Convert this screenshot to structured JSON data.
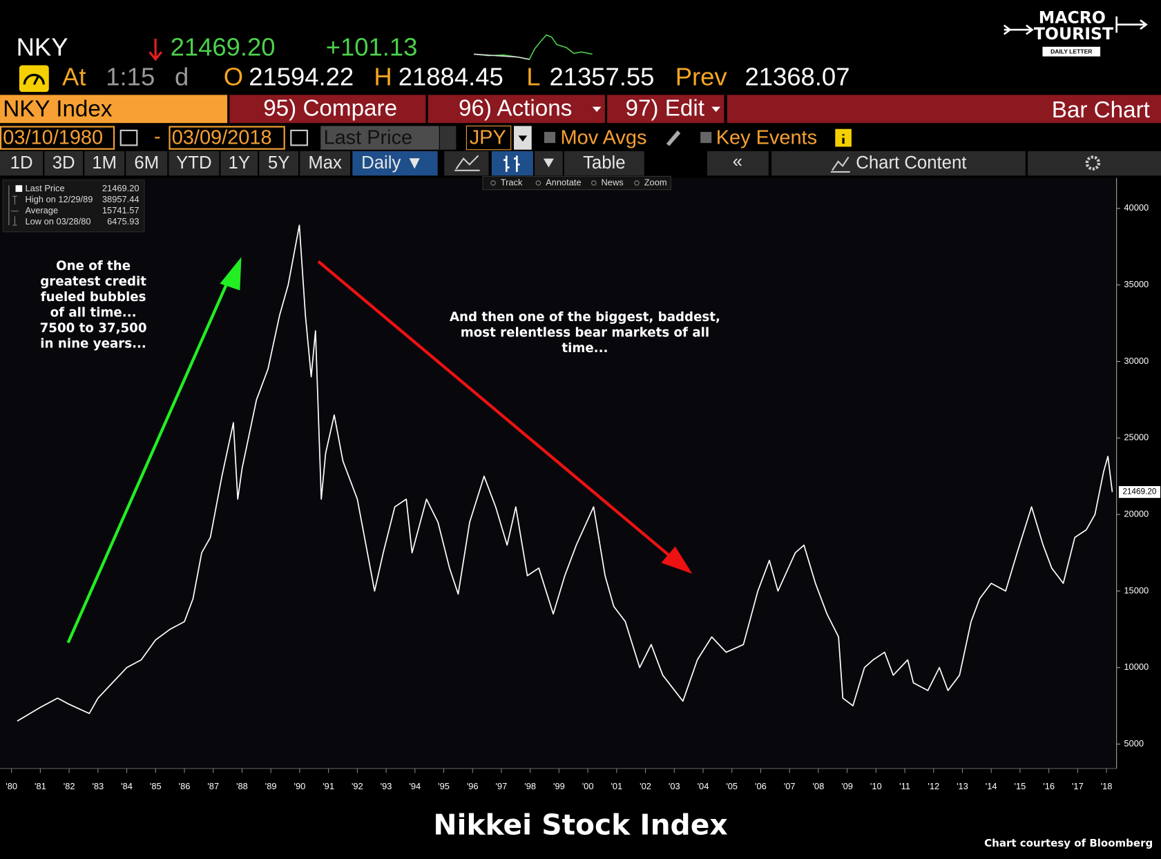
{
  "header": {
    "ticker": "NKY",
    "price": "21469.20",
    "change": "+101.13",
    "at": "At",
    "time": "1:15",
    "period": "d",
    "open_label": "O",
    "open": "21594.22",
    "high_label": "H",
    "high": "21884.45",
    "low_label": "L",
    "low": "21357.55",
    "prev_label": "Prev",
    "prev": "21368.07"
  },
  "logo": {
    "line1": "MACRO",
    "line2": "TOURIST",
    "line3": "DAILY LETTER"
  },
  "toolbar": {
    "security": "NKY Index",
    "compare": "95) Compare",
    "actions": "96) Actions",
    "edit": "97) Edit",
    "chart_type": "Bar Chart"
  },
  "settings": {
    "start": "03/10/1980",
    "separator": "-",
    "end": "03/09/2018",
    "field": "Last Price",
    "currency": "JPY",
    "mov_avgs": "Mov Avgs",
    "key_events": "Key Events"
  },
  "periods": [
    "1D",
    "3D",
    "1M",
    "6M",
    "YTD",
    "1Y",
    "5Y",
    "Max"
  ],
  "frequency": "Daily ▼",
  "table": "Table",
  "collapse": "«",
  "chart_content": "Chart Content",
  "tools": [
    "Track",
    "Annotate",
    "News",
    "Zoom"
  ],
  "chart_data": {
    "type": "line",
    "x": [
      1980.2,
      1981.0,
      1981.6,
      1982.0,
      1982.7,
      1983.0,
      1983.5,
      1984.0,
      1984.5,
      1985.0,
      1985.5,
      1986.0,
      1986.3,
      1986.6,
      1986.9,
      1987.3,
      1987.7,
      1987.85,
      1988.0,
      1988.5,
      1988.9,
      1989.3,
      1989.6,
      1989.99,
      1990.2,
      1990.4,
      1990.55,
      1990.75,
      1990.9,
      1991.2,
      1991.5,
      1992.0,
      1992.6,
      1992.9,
      1993.3,
      1993.7,
      1993.9,
      1994.4,
      1994.8,
      1995.2,
      1995.5,
      1995.9,
      1996.4,
      1996.8,
      1997.2,
      1997.5,
      1997.9,
      1998.3,
      1998.8,
      1999.2,
      1999.6,
      2000.2,
      2000.6,
      2000.9,
      2001.3,
      2001.8,
      2002.2,
      2002.6,
      2003.3,
      2003.8,
      2004.3,
      2004.8,
      2005.4,
      2005.9,
      2006.3,
      2006.6,
      2007.2,
      2007.5,
      2007.9,
      2008.3,
      2008.7,
      2008.85,
      2009.2,
      2009.6,
      2009.9,
      2010.3,
      2010.6,
      2011.1,
      2011.3,
      2011.8,
      2012.2,
      2012.5,
      2012.9,
      2013.3,
      2013.6,
      2014.0,
      2014.5,
      2014.9,
      2015.4,
      2015.8,
      2016.1,
      2016.5,
      2016.9,
      2017.3,
      2017.6,
      2017.9,
      2018.05,
      2018.2
    ],
    "series": [
      {
        "name": "Last Price",
        "color": "#ffffff",
        "values": [
          6500,
          7400,
          8000,
          7600,
          7000,
          8000,
          9000,
          10000,
          10500,
          11800,
          12500,
          13000,
          14500,
          17500,
          18500,
          22500,
          26000,
          21000,
          23000,
          27500,
          29500,
          33000,
          35000,
          38900,
          33000,
          29000,
          32000,
          21000,
          24000,
          26500,
          23500,
          21000,
          15000,
          17500,
          20500,
          21000,
          17500,
          21000,
          19500,
          16500,
          14800,
          19500,
          22500,
          20500,
          18000,
          20500,
          16000,
          16500,
          13500,
          16000,
          18000,
          20500,
          16000,
          14000,
          13000,
          10000,
          11500,
          9500,
          7800,
          10500,
          12000,
          11000,
          11500,
          15000,
          17000,
          15000,
          17500,
          18000,
          15500,
          13500,
          12000,
          8000,
          7500,
          10000,
          10500,
          11000,
          9500,
          10500,
          9000,
          8500,
          10000,
          8500,
          9500,
          13000,
          14500,
          15500,
          15000,
          17500,
          20500,
          18000,
          16500,
          15500,
          18500,
          19000,
          20000,
          22800,
          23800,
          21469.2
        ]
      }
    ],
    "last_value": {
      "value": 21469.2,
      "label": "21469.20"
    },
    "stats": [
      {
        "label": "High on 12/29/89",
        "value": 38957.44
      },
      {
        "label": "Average",
        "value": 15741.57
      },
      {
        "label": "Low on 03/28/80",
        "value": 6475.93
      }
    ],
    "xlim": [
      1979.6,
      2018.35
    ],
    "xticks": [
      {
        "value": 1980,
        "label": "'80"
      },
      {
        "value": 1981,
        "label": "'81"
      },
      {
        "value": 1982,
        "label": "'82"
      },
      {
        "value": 1983,
        "label": "'83"
      },
      {
        "value": 1984,
        "label": "'84"
      },
      {
        "value": 1985,
        "label": "'85"
      },
      {
        "value": 1986,
        "label": "'86"
      },
      {
        "value": 1987,
        "label": "'87"
      },
      {
        "value": 1988,
        "label": "'88"
      },
      {
        "value": 1989,
        "label": "'89"
      },
      {
        "value": 1990,
        "label": "'90"
      },
      {
        "value": 1991,
        "label": "'91"
      },
      {
        "value": 1992,
        "label": "'92"
      },
      {
        "value": 1993,
        "label": "'93"
      },
      {
        "value": 1994,
        "label": "'94"
      },
      {
        "value": 1995,
        "label": "'95"
      },
      {
        "value": 1996,
        "label": "'96"
      },
      {
        "value": 1997,
        "label": "'97"
      },
      {
        "value": 1998,
        "label": "'98"
      },
      {
        "value": 1999,
        "label": "'99"
      },
      {
        "value": 2000,
        "label": "'00"
      },
      {
        "value": 2001,
        "label": "'01"
      },
      {
        "value": 2002,
        "label": "'02"
      },
      {
        "value": 2003,
        "label": "'03"
      },
      {
        "value": 2004,
        "label": "'04"
      },
      {
        "value": 2005,
        "label": "'05"
      },
      {
        "value": 2006,
        "label": "'06"
      },
      {
        "value": 2007,
        "label": "'07"
      },
      {
        "value": 2008,
        "label": "'08"
      },
      {
        "value": 2009,
        "label": "'09"
      },
      {
        "value": 2010,
        "label": "'10"
      },
      {
        "value": 2011,
        "label": "'11"
      },
      {
        "value": 2012,
        "label": "'12"
      },
      {
        "value": 2013,
        "label": "'13"
      },
      {
        "value": 2014,
        "label": "'14"
      },
      {
        "value": 2015,
        "label": "'15"
      },
      {
        "value": 2016,
        "label": "'16"
      },
      {
        "value": 2017,
        "label": "'17"
      },
      {
        "value": 2018,
        "label": "'18"
      }
    ],
    "ylim": [
      3400,
      42000
    ],
    "yticks": [
      5000,
      10000,
      15000,
      20000,
      25000,
      30000,
      35000,
      40000
    ],
    "annotations": [
      [
        "One of the",
        "greatest credit",
        "fueled bubbles",
        "of all time...",
        "7500 to 37,500",
        "in nine years..."
      ],
      [
        "And then one of the biggest, baddest,",
        "most relentless bear markets of all",
        "time..."
      ]
    ]
  },
  "footer": {
    "title": "Nikkei Stock Index",
    "credit": "Chart courtesy of Bloomberg"
  }
}
